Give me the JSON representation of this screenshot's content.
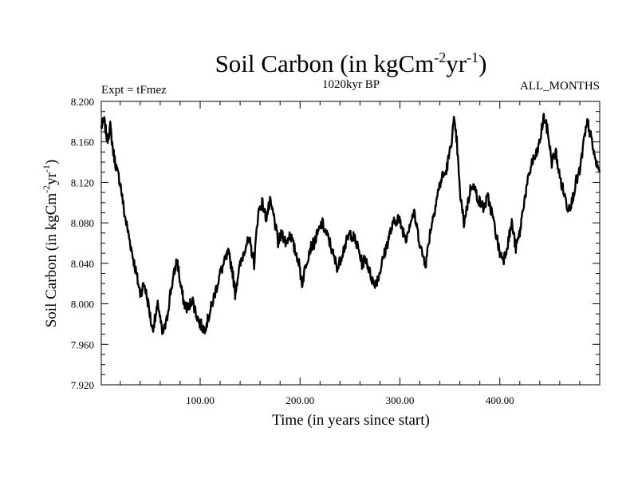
{
  "chart_data": {
    "type": "line",
    "title": {
      "main": "Soil Carbon (in kgCm",
      "sup1": "-2",
      "mid": "yr",
      "sup2": "-1",
      "end": ")"
    },
    "subtitle_left": "Expt = tFmez",
    "subtitle_center": "1020kyr BP",
    "subtitle_right": "ALL_MONTHS",
    "xlabel": "Time (in years since start)",
    "ylabel": {
      "main": "Soil Carbon (in kgCm",
      "sup1": "-2",
      "mid": "yr",
      "sup2": "-1",
      "end": ")"
    },
    "xlim": [
      1,
      500
    ],
    "ylim": [
      7.92,
      8.2
    ],
    "x_tick_labels": [
      "100.00",
      "200.00",
      "300.00",
      "400.00"
    ],
    "x_tick_values": [
      100,
      200,
      300,
      400
    ],
    "y_tick_labels": [
      "7.920",
      "7.960",
      "8.000",
      "8.040",
      "8.080",
      "8.120",
      "8.160",
      "8.200"
    ],
    "y_tick_values": [
      7.92,
      7.96,
      8.0,
      8.04,
      8.08,
      8.12,
      8.16,
      8.2
    ],
    "series": [
      {
        "name": "Soil Carbon",
        "color": "#000000",
        "points": [
          [
            1,
            8.175
          ],
          [
            4,
            8.18
          ],
          [
            7,
            8.162
          ],
          [
            10,
            8.175
          ],
          [
            13,
            8.15
          ],
          [
            17,
            8.13
          ],
          [
            20,
            8.12
          ],
          [
            24,
            8.09
          ],
          [
            28,
            8.07
          ],
          [
            32,
            8.05
          ],
          [
            36,
            8.03
          ],
          [
            40,
            8.01
          ],
          [
            44,
            8.02
          ],
          [
            48,
            8.0
          ],
          [
            52,
            7.975
          ],
          [
            55,
            7.985
          ],
          [
            58,
            8.0
          ],
          [
            62,
            7.97
          ],
          [
            66,
            7.98
          ],
          [
            70,
            8.01
          ],
          [
            74,
            8.03
          ],
          [
            77,
            8.045
          ],
          [
            80,
            8.02
          ],
          [
            84,
            8.0
          ],
          [
            88,
            7.995
          ],
          [
            92,
            8.005
          ],
          [
            96,
            7.99
          ],
          [
            100,
            7.98
          ],
          [
            104,
            7.975
          ],
          [
            108,
            7.985
          ],
          [
            112,
            8.0
          ],
          [
            116,
            8.015
          ],
          [
            120,
            8.03
          ],
          [
            124,
            8.04
          ],
          [
            128,
            8.05
          ],
          [
            132,
            8.035
          ],
          [
            135,
            8.01
          ],
          [
            138,
            8.03
          ],
          [
            142,
            8.045
          ],
          [
            146,
            8.06
          ],
          [
            150,
            8.06
          ],
          [
            154,
            8.04
          ],
          [
            158,
            8.09
          ],
          [
            162,
            8.1
          ],
          [
            166,
            8.085
          ],
          [
            170,
            8.1
          ],
          [
            174,
            8.085
          ],
          [
            178,
            8.06
          ],
          [
            182,
            8.07
          ],
          [
            186,
            8.06
          ],
          [
            190,
            8.07
          ],
          [
            194,
            8.055
          ],
          [
            198,
            8.045
          ],
          [
            202,
            8.02
          ],
          [
            206,
            8.04
          ],
          [
            210,
            8.055
          ],
          [
            214,
            8.06
          ],
          [
            218,
            8.07
          ],
          [
            222,
            8.08
          ],
          [
            226,
            8.07
          ],
          [
            230,
            8.06
          ],
          [
            234,
            8.045
          ],
          [
            238,
            8.035
          ],
          [
            242,
            8.05
          ],
          [
            246,
            8.06
          ],
          [
            250,
            8.07
          ],
          [
            254,
            8.065
          ],
          [
            258,
            8.055
          ],
          [
            262,
            8.04
          ],
          [
            266,
            8.045
          ],
          [
            270,
            8.03
          ],
          [
            274,
            8.02
          ],
          [
            278,
            8.025
          ],
          [
            282,
            8.04
          ],
          [
            286,
            8.055
          ],
          [
            290,
            8.07
          ],
          [
            294,
            8.08
          ],
          [
            298,
            8.085
          ],
          [
            302,
            8.075
          ],
          [
            306,
            8.065
          ],
          [
            310,
            8.08
          ],
          [
            314,
            8.09
          ],
          [
            318,
            8.07
          ],
          [
            322,
            8.05
          ],
          [
            326,
            8.04
          ],
          [
            330,
            8.07
          ],
          [
            334,
            8.09
          ],
          [
            338,
            8.11
          ],
          [
            342,
            8.125
          ],
          [
            346,
            8.13
          ],
          [
            350,
            8.15
          ],
          [
            354,
            8.18
          ],
          [
            357,
            8.16
          ],
          [
            360,
            8.11
          ],
          [
            364,
            8.08
          ],
          [
            368,
            8.1
          ],
          [
            372,
            8.12
          ],
          [
            376,
            8.11
          ],
          [
            380,
            8.1
          ],
          [
            384,
            8.095
          ],
          [
            388,
            8.105
          ],
          [
            392,
            8.09
          ],
          [
            396,
            8.07
          ],
          [
            400,
            8.05
          ],
          [
            404,
            8.045
          ],
          [
            408,
            8.06
          ],
          [
            412,
            8.08
          ],
          [
            416,
            8.055
          ],
          [
            420,
            8.07
          ],
          [
            424,
            8.1
          ],
          [
            428,
            8.12
          ],
          [
            432,
            8.14
          ],
          [
            436,
            8.145
          ],
          [
            440,
            8.16
          ],
          [
            444,
            8.185
          ],
          [
            448,
            8.17
          ],
          [
            452,
            8.14
          ],
          [
            456,
            8.15
          ],
          [
            460,
            8.125
          ],
          [
            464,
            8.11
          ],
          [
            468,
            8.095
          ],
          [
            472,
            8.1
          ],
          [
            476,
            8.12
          ],
          [
            480,
            8.13
          ],
          [
            484,
            8.16
          ],
          [
            488,
            8.18
          ],
          [
            492,
            8.16
          ],
          [
            496,
            8.14
          ],
          [
            500,
            8.13
          ]
        ]
      }
    ]
  }
}
